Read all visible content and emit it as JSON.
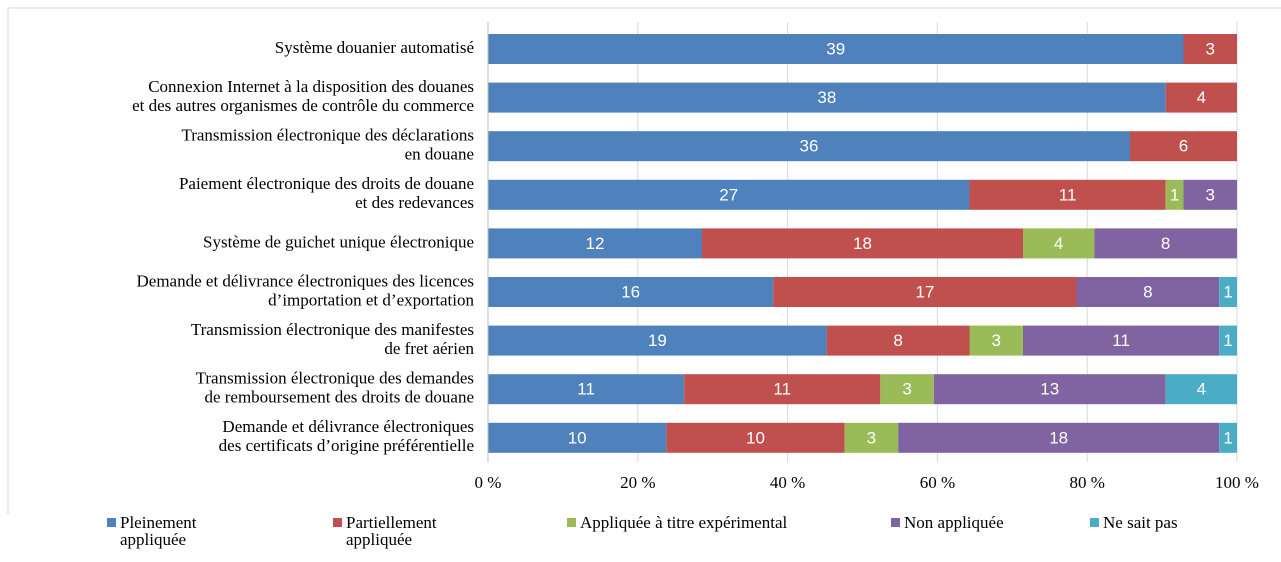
{
  "chart_data": {
    "type": "bar",
    "orientation": "horizontal",
    "stacked": "percent",
    "categories": [
      [
        "Système douanier automatisé"
      ],
      [
        "Connexion Internet à la disposition des douanes",
        "et des autres organismes de contrôle du commerce"
      ],
      [
        "Transmission électronique des déclarations",
        "en douane"
      ],
      [
        "Paiement électronique des droits de douane",
        "et des redevances"
      ],
      [
        "Système de guichet unique électronique"
      ],
      [
        "Demande et délivrance électroniques des licences",
        "d’importation et d’exportation"
      ],
      [
        "Transmission électronique des manifestes",
        "de fret aérien"
      ],
      [
        "Transmission électronique des demandes",
        "de remboursement des droits de douane"
      ],
      [
        "Demande et délivrance électroniques",
        "des certificats d’origine préférentielle"
      ]
    ],
    "series": [
      {
        "name": "Pleinement appliquée",
        "color": "#4f81bd",
        "values": [
          39,
          38,
          36,
          27,
          12,
          16,
          19,
          11,
          10
        ]
      },
      {
        "name": "Partiellement appliquée",
        "color": "#c0504d",
        "values": [
          3,
          4,
          6,
          11,
          18,
          17,
          8,
          11,
          10
        ]
      },
      {
        "name": "Appliquée à titre expérimental",
        "color": "#9bbb59",
        "values": [
          null,
          null,
          null,
          1,
          4,
          null,
          3,
          3,
          3
        ]
      },
      {
        "name": "Non appliquée",
        "color": "#8064a2",
        "values": [
          null,
          null,
          null,
          3,
          8,
          8,
          11,
          13,
          18
        ]
      },
      {
        "name": "Ne sait pas",
        "color": "#4bacc6",
        "values": [
          null,
          null,
          null,
          null,
          null,
          1,
          1,
          4,
          1
        ]
      }
    ],
    "xlim": [
      0,
      100
    ],
    "xticks": [
      {
        "value": 0,
        "label": "0 %"
      },
      {
        "value": 20,
        "label": "20 %"
      },
      {
        "value": 40,
        "label": "40 %"
      },
      {
        "value": 60,
        "label": "60 %"
      },
      {
        "value": 80,
        "label": "80 %"
      },
      {
        "value": 100,
        "label": "100 %"
      }
    ],
    "legend": "bottom"
  }
}
